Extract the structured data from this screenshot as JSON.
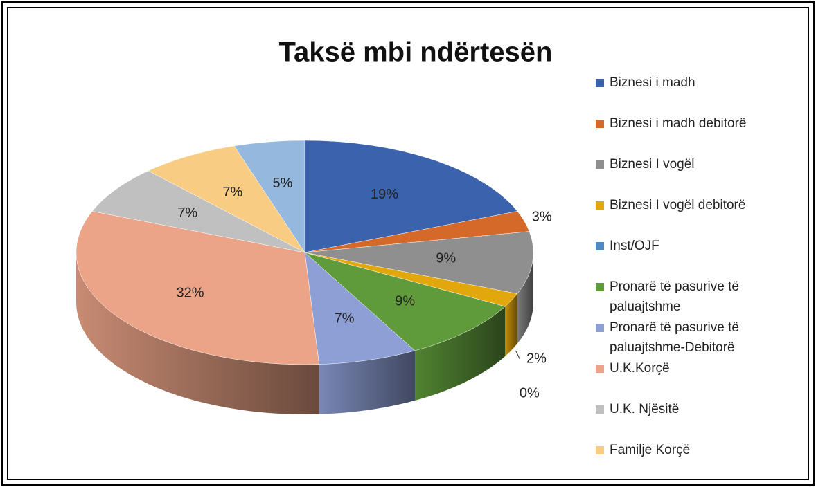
{
  "chart_data": {
    "type": "pie3d",
    "title": "Taksë  mbi ndërtesën",
    "categories": [
      "Biznesi i madh",
      "Biznesi i madh debitorë",
      "Biznesi I vogël",
      "Biznesi I vogël debitorë",
      "Inst/OJF",
      "Pronarë të pasurive të paluajtshme",
      "Pronarë të pasurive të paluajtshme-Debitorë",
      "U.K.Korçë",
      "U.K. Njësitë",
      "Familje Korçë",
      null
    ],
    "values": [
      19,
      3,
      9,
      2,
      0,
      9,
      7,
      32,
      7,
      7,
      5
    ],
    "value_labels": [
      "19%",
      "3%",
      "9%",
      "2%",
      "0%",
      "9%",
      "7%",
      "32%",
      "7%",
      "7%",
      "5%"
    ],
    "colors": [
      "#3a62ad",
      "#d4692a",
      "#8f8f8f",
      "#e2a70c",
      "#4f8ac0",
      "#5f9a3b",
      "#8e9fd6",
      "#eba487",
      "#c0c0c0",
      "#f8cd83",
      "#95b8df"
    ],
    "legend": "right"
  }
}
